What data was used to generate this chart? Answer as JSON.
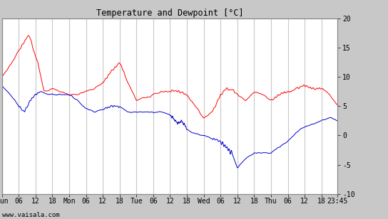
{
  "title": "Temperature and Dewpoint [°C]",
  "ylabel_right_ticks": [
    -10,
    -5,
    0,
    5,
    10,
    15,
    20
  ],
  "ylim": [
    -10,
    20
  ],
  "watermark": "www.vaisala.com",
  "bg_color": "#c8c8c8",
  "plot_bg_color": "#ffffff",
  "grid_color": "#c8c8c8",
  "temp_color": "#ff0000",
  "dewp_color": "#0000cc",
  "line_width": 0.7,
  "temp_keypoints_t": [
    0,
    3,
    6,
    8,
    9,
    10,
    11,
    13,
    15,
    18,
    21,
    24,
    27,
    30,
    33,
    36,
    39,
    42,
    45,
    48,
    51,
    54,
    57,
    60,
    63,
    66,
    69,
    72,
    75,
    78,
    80,
    82,
    84,
    87,
    90,
    93,
    96,
    99,
    102,
    105,
    108,
    111,
    114,
    117,
    119.75
  ],
  "temp_keypoints_v": [
    10,
    12,
    14.5,
    16,
    17,
    17,
    15,
    12,
    7.5,
    8,
    7.5,
    7,
    7,
    7.5,
    8,
    9,
    11,
    12.5,
    9,
    6,
    6.5,
    7,
    7.5,
    7.5,
    7.5,
    7,
    5,
    3,
    4,
    7,
    8,
    8,
    7,
    6,
    7.5,
    7,
    6,
    7,
    7.5,
    8,
    8.5,
    8,
    8,
    7,
    5
  ],
  "dewp_keypoints_t": [
    0,
    3,
    6,
    8,
    10,
    12,
    14,
    16,
    18,
    21,
    24,
    27,
    30,
    33,
    36,
    39,
    42,
    45,
    48,
    51,
    54,
    57,
    60,
    62,
    63,
    64,
    65,
    66,
    68,
    70,
    72,
    75,
    78,
    80,
    82,
    84,
    87,
    90,
    93,
    96,
    99,
    102,
    105,
    108,
    111,
    114,
    117,
    119.75
  ],
  "dewp_keypoints_v": [
    8.5,
    7,
    5,
    4,
    6,
    7,
    7.5,
    7,
    7,
    7,
    7,
    6,
    4.5,
    4,
    4.5,
    5,
    5,
    4,
    4,
    4,
    4,
    4,
    3.5,
    2.5,
    2,
    2.5,
    2,
    1,
    0.5,
    0.2,
    0,
    -0.5,
    -1,
    -2,
    -3,
    -5.5,
    -4,
    -3,
    -3,
    -3,
    -2,
    -1,
    0.5,
    1.5,
    2,
    2.5,
    3,
    2.5
  ],
  "temp_noise_seed": 10,
  "dewp_noise_seed": 20,
  "temp_wiggle_ranges": [
    [
      6,
      13
    ],
    [
      36,
      44
    ],
    [
      60,
      67
    ],
    [
      75,
      83
    ],
    [
      96,
      103
    ],
    [
      105,
      115
    ]
  ],
  "dewp_wiggle_ranges": [
    [
      6,
      13
    ],
    [
      36,
      42
    ],
    [
      60,
      66
    ],
    [
      75,
      82
    ]
  ]
}
